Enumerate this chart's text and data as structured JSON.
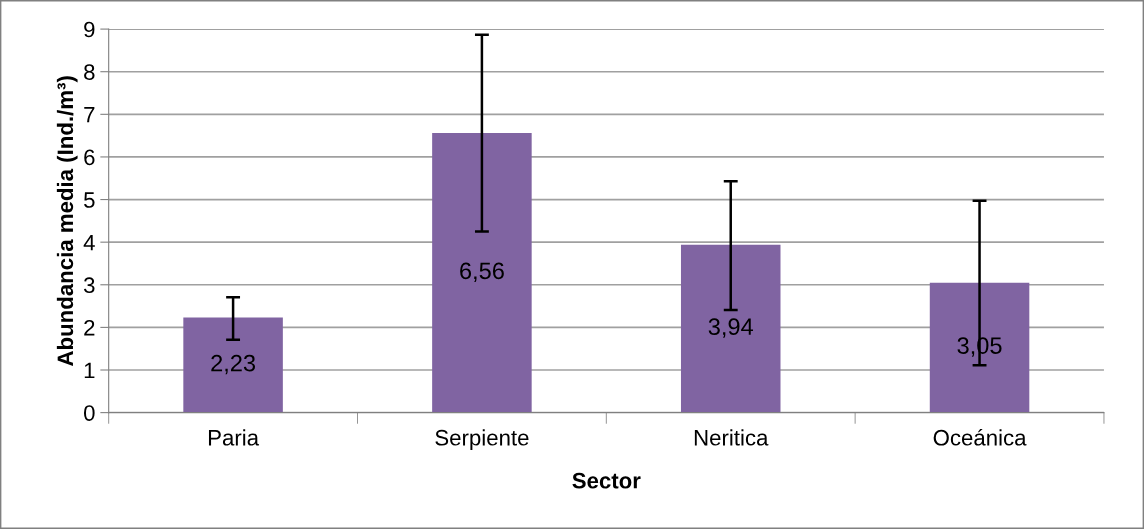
{
  "chart_data": {
    "type": "bar",
    "xlabel": "Sector",
    "ylabel": "Abundancia media (Ind./m³)",
    "categories": [
      "Paria",
      "Serpiente",
      "Neritica",
      "Oceánica"
    ],
    "values": [
      2.23,
      6.56,
      3.94,
      3.05
    ],
    "value_labels": [
      "2,23",
      "6,56",
      "3,94",
      "3,05"
    ],
    "errors": [
      [
        1.71,
        2.71
      ],
      [
        4.25,
        8.87
      ],
      [
        2.41,
        5.43
      ],
      [
        1.11,
        4.97
      ]
    ],
    "color": "#8064a2",
    "ylim": [
      0,
      9
    ],
    "yticks": [
      0,
      1,
      2,
      3,
      4,
      5,
      6,
      7,
      8,
      9
    ],
    "grid": "y",
    "legend": false
  }
}
